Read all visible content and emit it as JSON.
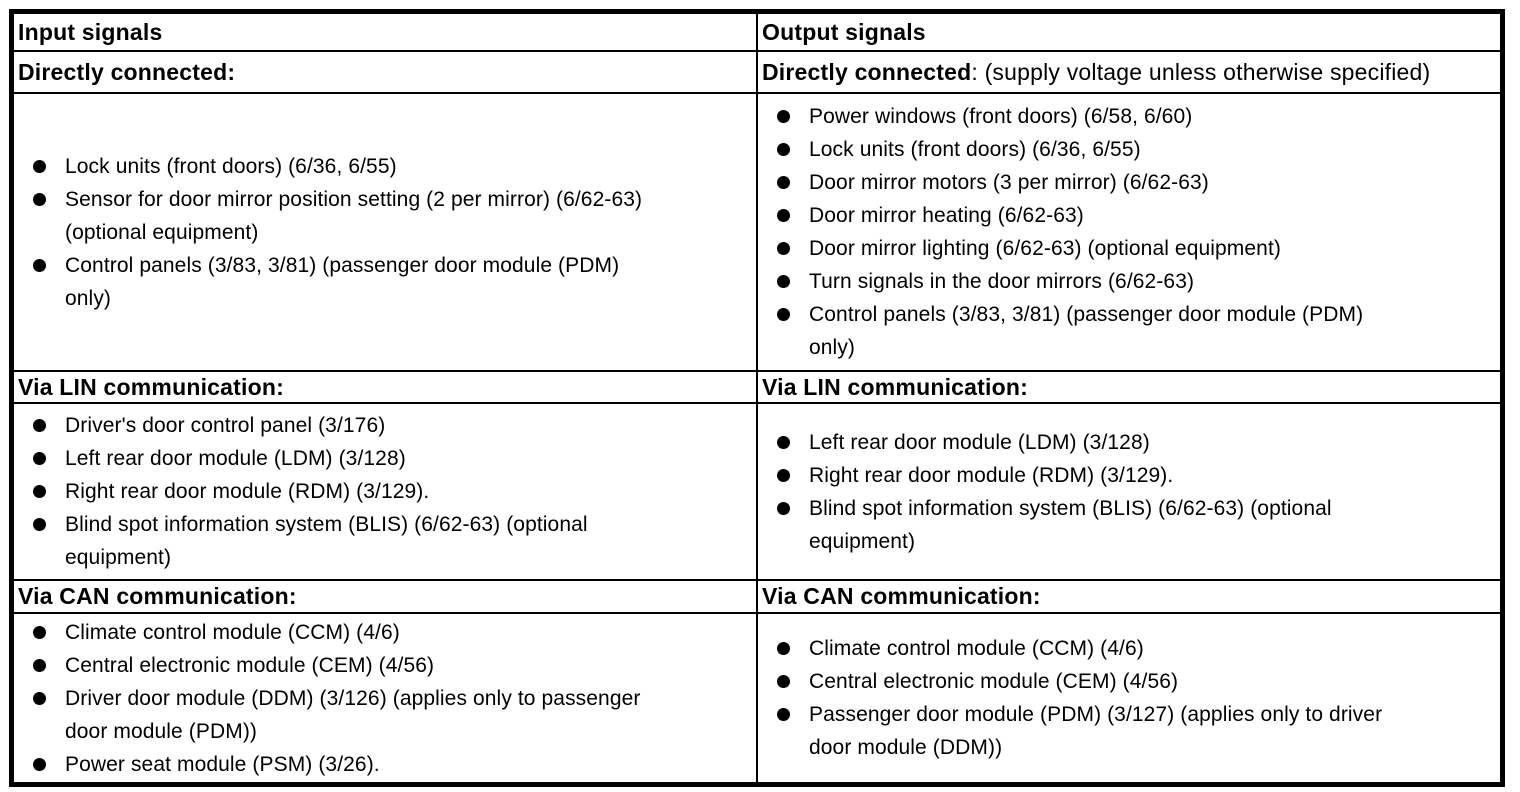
{
  "table": {
    "columns": [
      {
        "header": "Input signals",
        "sections": [
          {
            "title": "Directly connected:",
            "title_suffix": "",
            "items": [
              "Lock units (front doors) (6/36, 6/55)",
              "Sensor for door mirror position setting (2 per mirror) (6/62-63)\n(optional equipment)",
              "Control panels (3/83, 3/81) (passenger door module (PDM)\nonly)"
            ]
          },
          {
            "title": "Via LIN communication:",
            "title_suffix": "",
            "items": [
              "Driver's door control panel (3/176)",
              "Left rear door module (LDM) (3/128)",
              "Right rear door module (RDM) (3/129).",
              "Blind spot information system (BLIS) (6/62-63) (optional\nequipment)"
            ]
          },
          {
            "title": "Via CAN communication:",
            "title_suffix": "",
            "items": [
              "Climate control module (CCM) (4/6)",
              "Central electronic module (CEM) (4/56)",
              "Driver door module (DDM) (3/126) (applies only to passenger\ndoor module (PDM))",
              "Power seat module (PSM) (3/26)."
            ]
          }
        ]
      },
      {
        "header": "Output signals",
        "sections": [
          {
            "title": "Directly connected",
            "title_suffix": ": (supply voltage unless otherwise specified)",
            "items": [
              "Power windows (front doors) (6/58, 6/60)",
              "Lock units (front doors) (6/36, 6/55)",
              "Door mirror motors (3 per mirror) (6/62-63)",
              "Door mirror heating (6/62-63)",
              "Door mirror lighting (6/62-63) (optional equipment)",
              "Turn signals in the door mirrors (6/62-63)",
              "Control panels (3/83, 3/81) (passenger door module (PDM)\nonly)"
            ]
          },
          {
            "title": "Via LIN communication:",
            "title_suffix": "",
            "items": [
              "Left rear door module (LDM) (3/128)",
              "Right rear door module (RDM) (3/129).",
              "Blind spot information system (BLIS) (6/62-63) (optional\nequipment)"
            ]
          },
          {
            "title": "Via CAN communication:",
            "title_suffix": "",
            "items": [
              "Climate control module (CCM) (4/6)",
              "Central electronic module (CEM) (4/56)",
              "Passenger door module (PDM) (3/127) (applies only to driver\ndoor module (DDM))"
            ]
          }
        ]
      }
    ],
    "colors": {
      "border": "#000000",
      "text": "#000000",
      "background": "#ffffff"
    }
  }
}
